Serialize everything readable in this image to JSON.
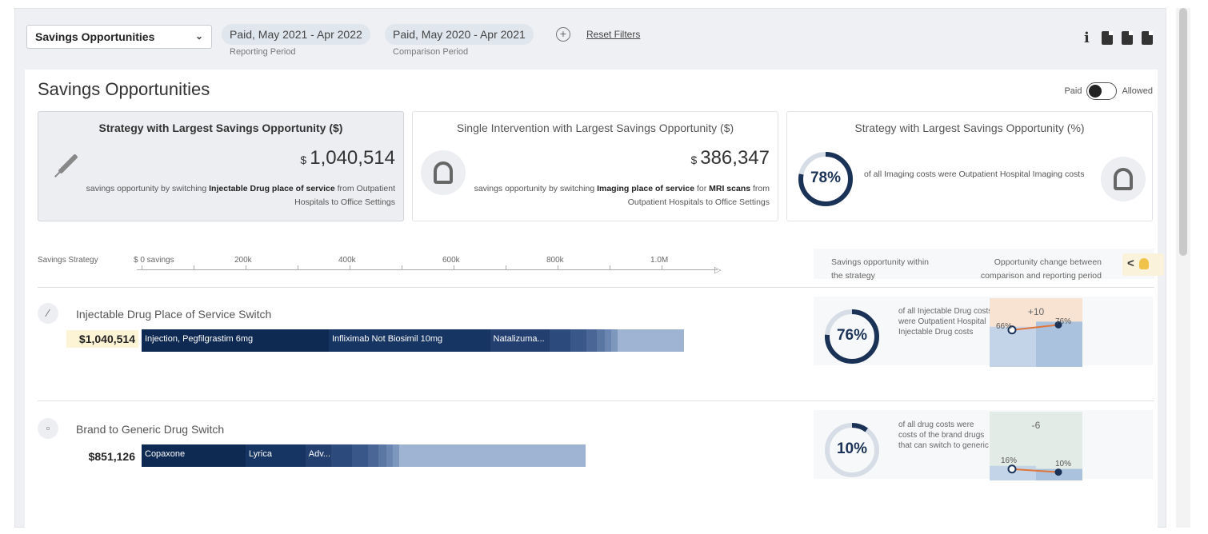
{
  "filters": {
    "view_select": "Savings Opportunities",
    "reporting_period": "Paid, May 2021 - Apr 2022",
    "reporting_label": "Reporting Period",
    "comparison_period": "Paid, May 2020 - Apr 2021",
    "comparison_label": "Comparison Period",
    "add_icon": "+",
    "reset_label": "Reset Filters",
    "info_icon": "i"
  },
  "panel": {
    "title": "Savings Opportunities",
    "toggle_left": "Paid",
    "toggle_right": "Allowed"
  },
  "cards": [
    {
      "title": "Strategy with Largest Savings Opportunity ($)",
      "currency": "$",
      "amount": "1,040,514",
      "desc_pre": "savings opportunity by switching ",
      "desc_bold": "Injectable Drug place of service",
      "desc_post": " from Outpatient Hospitals to Office Settings",
      "icon": "syringe-icon"
    },
    {
      "title": "Single Intervention with Largest Savings Opportunity ($)",
      "currency": "$",
      "amount": "386,347",
      "desc_pre": "savings opportunity by switching ",
      "desc_bold": "Imaging place of service",
      "desc_mid": " for ",
      "desc_bold2": "MRI scans",
      "desc_post": " from Outpatient Hospitals to Office Settings",
      "icon": "mri-scanner-icon"
    },
    {
      "title": "Strategy with Largest Savings Opportunity (%)",
      "percent": "78%",
      "percent_value": 0.78,
      "desc": "of all Imaging costs were Outpatient Hospital Imaging costs",
      "icon": "mri-scanner-icon"
    }
  ],
  "axis": {
    "label": "Savings Strategy",
    "ticks": [
      "$ 0 savings",
      "200k",
      "400k",
      "600k",
      "800k",
      "1.0M"
    ]
  },
  "right_header": {
    "col1": "Savings opportunity within the strategy",
    "col2": "Opportunity change between comparison and reporting period",
    "badge": "<"
  },
  "strategies": [
    {
      "title": "Injectable Drug Place of Service Switch",
      "total": "$1,040,514",
      "icon": "syringe-icon",
      "segments": [
        {
          "label": "Injection, Pegfilgrastim 6mg",
          "value": 360000,
          "color": "#0f2a52"
        },
        {
          "label": "Infliximab Not Biosimil 10mg",
          "value": 310000,
          "color": "#163563"
        },
        {
          "label": "Natalizuma...",
          "value": 115000,
          "color": "#233f70"
        },
        {
          "label": "",
          "value": 40000,
          "color": "#2c4a7c"
        },
        {
          "label": "",
          "value": 30000,
          "color": "#3a5789"
        },
        {
          "label": "",
          "value": 20000,
          "color": "#4a6696"
        },
        {
          "label": "",
          "value": 15000,
          "color": "#5a76a3"
        },
        {
          "label": "",
          "value": 12000,
          "color": "#6b86b0"
        },
        {
          "label": "",
          "value": 10000,
          "color": "#7e97bd"
        },
        {
          "label": "",
          "value": 128514,
          "color": "#9fb3d2"
        }
      ],
      "percent": "76%",
      "percent_value": 0.76,
      "stat_text": "of all Injectable Drug costs were Outpatient Hospital Injectable Drug costs",
      "delta": "+10",
      "from_label": "66%",
      "to_label": "76%",
      "from_value": 0.66,
      "to_value": 0.76,
      "mini_bg": "#f8e3d3"
    },
    {
      "title": "Brand to Generic Drug Switch",
      "total": "$851,126",
      "icon": "pill-bottle-icon",
      "segments": [
        {
          "label": "Copaxone",
          "value": 200000,
          "color": "#0f2a52"
        },
        {
          "label": "Lyrica",
          "value": 115000,
          "color": "#163563"
        },
        {
          "label": "Adv...",
          "value": 50000,
          "color": "#233f70"
        },
        {
          "label": "",
          "value": 40000,
          "color": "#2c4a7c"
        },
        {
          "label": "",
          "value": 30000,
          "color": "#3a5789"
        },
        {
          "label": "",
          "value": 20000,
          "color": "#4a6696"
        },
        {
          "label": "",
          "value": 15000,
          "color": "#5a76a3"
        },
        {
          "label": "",
          "value": 12000,
          "color": "#6b86b0"
        },
        {
          "label": "",
          "value": 10000,
          "color": "#7e97bd"
        },
        {
          "label": "",
          "value": 359126,
          "color": "#9fb3d2"
        }
      ],
      "percent": "10%",
      "percent_value": 0.1,
      "stat_text": "of all drug costs were costs of the brand drugs that can switch to generic",
      "delta": "-6",
      "from_label": "16%",
      "to_label": "10%",
      "from_value": 0.16,
      "to_value": 0.1,
      "mini_bg": "#e2ebe6"
    }
  ]
}
